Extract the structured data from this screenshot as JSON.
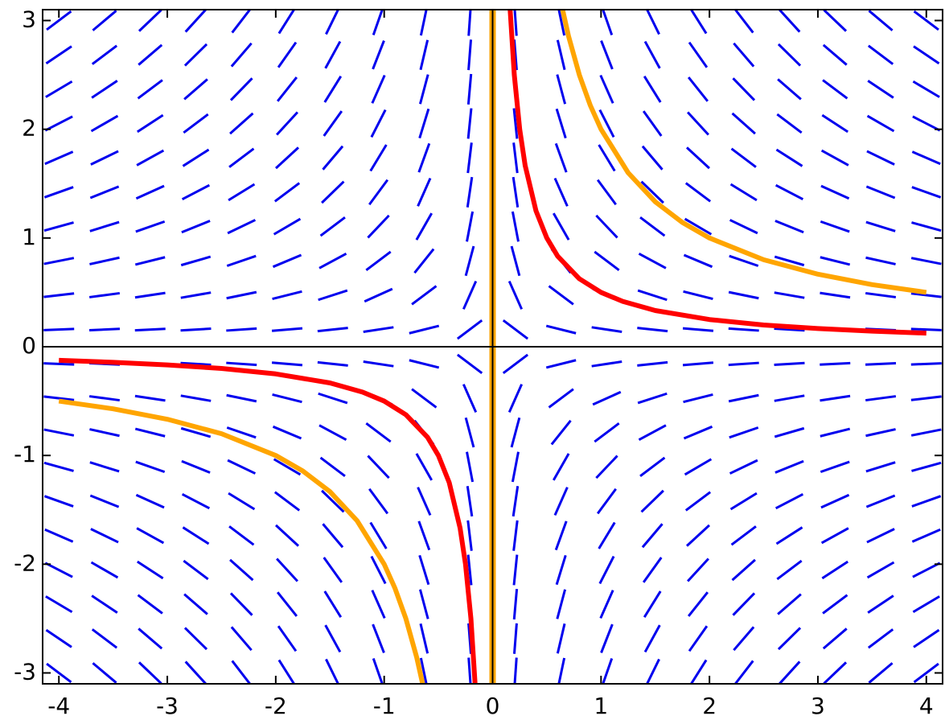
{
  "chart_data": {
    "type": "slope_field",
    "xlim": [
      -4.15,
      4.15
    ],
    "ylim": [
      -3.1,
      3.1
    ],
    "xticks": [
      -4,
      -3,
      -2,
      -1,
      0,
      1,
      2,
      3,
      4
    ],
    "yticks": [
      -3,
      -2,
      -1,
      0,
      1,
      2,
      3
    ],
    "axes_color": "#000000",
    "field": {
      "color": "#0000ee",
      "x": [
        -4,
        -3.579,
        -3.158,
        -2.737,
        -2.316,
        -1.895,
        -1.474,
        -1.053,
        -0.632,
        -0.211,
        0.211,
        0.632,
        1.053,
        1.474,
        1.895,
        2.316,
        2.737,
        3.158,
        3.579,
        4
      ],
      "y": [
        -3,
        -2.684,
        -2.368,
        -2.053,
        -1.737,
        -1.421,
        -1.105,
        -0.789,
        -0.474,
        -0.158,
        0.158,
        0.474,
        0.789,
        1.105,
        1.421,
        1.737,
        2.053,
        2.368,
        2.684,
        3
      ],
      "slopes": [
        [
          -0.75,
          -0.838,
          -0.95,
          -1.096,
          -1.295,
          -1.583,
          -2.036,
          -2.85,
          -4.75,
          -14.25,
          14.25,
          4.75,
          2.85,
          2.036,
          1.583,
          1.295,
          1.096,
          0.95,
          0.838,
          0.75
        ],
        [
          -0.671,
          -0.75,
          -0.85,
          -0.981,
          -1.159,
          -1.417,
          -1.821,
          -2.55,
          -4.25,
          -12.75,
          12.75,
          4.25,
          2.55,
          1.821,
          1.417,
          1.159,
          0.981,
          0.85,
          0.75,
          0.671
        ],
        [
          -0.592,
          -0.662,
          -0.75,
          -0.865,
          -1.023,
          -1.25,
          -1.607,
          -2.25,
          -3.75,
          -11.25,
          11.25,
          3.75,
          2.25,
          1.607,
          1.25,
          1.023,
          0.865,
          0.75,
          0.662,
          0.592
        ],
        [
          -0.513,
          -0.574,
          -0.65,
          -0.75,
          -0.886,
          -1.083,
          -1.393,
          -1.95,
          -3.25,
          -9.75,
          9.75,
          3.25,
          1.95,
          1.393,
          1.083,
          0.886,
          0.75,
          0.65,
          0.574,
          0.513
        ],
        [
          -0.434,
          -0.485,
          -0.55,
          -0.635,
          -0.75,
          -0.917,
          -1.179,
          -1.65,
          -2.75,
          -8.25,
          8.25,
          2.75,
          1.65,
          1.179,
          0.917,
          0.75,
          0.635,
          0.55,
          0.485,
          0.434
        ],
        [
          -0.355,
          -0.397,
          -0.45,
          -0.519,
          -0.614,
          -0.75,
          -0.964,
          -1.35,
          -2.25,
          -6.75,
          6.75,
          2.25,
          1.35,
          0.964,
          0.75,
          0.614,
          0.519,
          0.45,
          0.397,
          0.355
        ],
        [
          -0.276,
          -0.309,
          -0.35,
          -0.404,
          -0.477,
          -0.583,
          -0.75,
          -1.05,
          -1.75,
          -5.25,
          5.25,
          1.75,
          1.05,
          0.75,
          0.583,
          0.477,
          0.404,
          0.35,
          0.309,
          0.276
        ],
        [
          -0.197,
          -0.221,
          -0.25,
          -0.288,
          -0.341,
          -0.417,
          -0.536,
          -0.75,
          -1.25,
          -3.75,
          3.75,
          1.25,
          0.75,
          0.536,
          0.417,
          0.341,
          0.288,
          0.25,
          0.221,
          0.197
        ],
        [
          -0.118,
          -0.132,
          -0.15,
          -0.173,
          -0.205,
          -0.25,
          -0.321,
          -0.45,
          -0.75,
          -2.25,
          2.25,
          0.75,
          0.45,
          0.321,
          0.25,
          0.205,
          0.173,
          0.15,
          0.132,
          0.118
        ],
        [
          -0.039,
          -0.044,
          -0.05,
          -0.058,
          -0.068,
          -0.083,
          -0.107,
          -0.15,
          -0.25,
          -0.75,
          0.75,
          0.25,
          0.15,
          0.107,
          0.083,
          0.068,
          0.058,
          0.05,
          0.044,
          0.039
        ],
        [
          0.039,
          0.044,
          0.05,
          0.058,
          0.068,
          0.083,
          0.107,
          0.15,
          0.25,
          0.75,
          -0.75,
          -0.25,
          -0.15,
          -0.107,
          -0.083,
          -0.068,
          -0.058,
          -0.05,
          -0.044,
          -0.039
        ],
        [
          0.118,
          0.132,
          0.15,
          0.173,
          0.205,
          0.25,
          0.321,
          0.45,
          0.75,
          2.25,
          -2.25,
          -0.75,
          -0.45,
          -0.321,
          -0.25,
          -0.205,
          -0.173,
          -0.15,
          -0.132,
          -0.118
        ],
        [
          0.197,
          0.221,
          0.25,
          0.288,
          0.341,
          0.417,
          0.536,
          0.75,
          1.25,
          3.75,
          -3.75,
          -1.25,
          -0.75,
          -0.536,
          -0.417,
          -0.341,
          -0.288,
          -0.25,
          -0.221,
          -0.197
        ],
        [
          0.276,
          0.309,
          0.35,
          0.404,
          0.477,
          0.583,
          0.75,
          1.05,
          1.75,
          5.25,
          -5.25,
          -1.75,
          -1.05,
          -0.75,
          -0.583,
          -0.477,
          -0.404,
          -0.35,
          -0.309,
          -0.276
        ],
        [
          0.355,
          0.397,
          0.45,
          0.519,
          0.614,
          0.75,
          0.964,
          1.35,
          2.25,
          6.75,
          -6.75,
          -2.25,
          -1.35,
          -0.964,
          -0.75,
          -0.614,
          -0.519,
          -0.45,
          -0.397,
          -0.355
        ],
        [
          0.434,
          0.485,
          0.55,
          0.635,
          0.75,
          0.917,
          1.179,
          1.65,
          2.75,
          8.25,
          -8.25,
          -2.75,
          -1.65,
          -1.179,
          -0.917,
          -0.75,
          -0.635,
          -0.55,
          -0.485,
          -0.434
        ],
        [
          0.513,
          0.574,
          0.65,
          0.75,
          0.886,
          1.083,
          1.393,
          1.95,
          3.25,
          9.75,
          -9.75,
          -3.25,
          -1.95,
          -1.393,
          -1.083,
          -0.886,
          -0.75,
          -0.65,
          -0.574,
          -0.513
        ],
        [
          0.592,
          0.662,
          0.75,
          0.865,
          1.023,
          1.25,
          1.607,
          2.25,
          3.75,
          11.25,
          -11.25,
          -3.75,
          -2.25,
          -1.607,
          -1.25,
          -1.023,
          -0.865,
          -0.75,
          -0.662,
          -0.592
        ],
        [
          0.671,
          0.75,
          0.85,
          0.981,
          1.159,
          1.417,
          1.821,
          2.55,
          4.25,
          12.75,
          -12.75,
          -4.25,
          -2.55,
          -1.821,
          -1.417,
          -1.159,
          -0.981,
          -0.85,
          -0.75,
          -0.671
        ],
        [
          0.75,
          0.838,
          0.95,
          1.096,
          1.295,
          1.583,
          2.036,
          2.85,
          4.75,
          14.25,
          -14.25,
          -4.75,
          -2.85,
          -2.036,
          -1.583,
          -1.295,
          -1.096,
          -0.95,
          -0.838,
          -0.75
        ]
      ]
    },
    "series": [
      {
        "color": "#ffa500",
        "x": [
          0,
          0
        ],
        "values": [
          -3.1,
          3.1
        ]
      },
      {
        "color": "#ffa500",
        "x": [
          -4,
          -3.5,
          -3,
          -2.5,
          -2,
          -1.75,
          -1.5,
          -1.25,
          -1,
          -0.9,
          -0.8,
          -0.7,
          -0.64,
          null,
          0.64,
          0.7,
          0.8,
          0.9,
          1,
          1.25,
          1.5,
          1.75,
          2,
          2.5,
          3,
          3.5,
          4
        ],
        "values": [
          -0.5,
          -0.571,
          -0.667,
          -0.8,
          -1,
          -1.143,
          -1.333,
          -1.6,
          -2,
          -2.222,
          -2.5,
          -2.857,
          -3.125,
          null,
          3.125,
          2.857,
          2.5,
          2.222,
          2,
          1.6,
          1.333,
          1.143,
          1,
          0.8,
          0.667,
          0.571,
          0.5
        ]
      },
      {
        "color": "#ff0000",
        "x": [
          -4,
          -3.5,
          -3,
          -2.5,
          -2,
          -1.5,
          -1.2,
          -1,
          -0.8,
          -0.6,
          -0.5,
          -0.4,
          -0.3,
          -0.25,
          -0.2,
          -0.16,
          null,
          0.16,
          0.2,
          0.25,
          0.3,
          0.4,
          0.5,
          0.6,
          0.8,
          1,
          1.2,
          1.5,
          2,
          2.5,
          3,
          3.5,
          4
        ],
        "values": [
          -0.125,
          -0.143,
          -0.167,
          -0.2,
          -0.25,
          -0.333,
          -0.417,
          -0.5,
          -0.625,
          -0.833,
          -1,
          -1.25,
          -1.667,
          -2,
          -2.5,
          -3.125,
          null,
          3.125,
          2.5,
          2,
          1.667,
          1.25,
          1,
          0.833,
          0.625,
          0.5,
          0.417,
          0.333,
          0.25,
          0.2,
          0.167,
          0.143,
          0.125
        ]
      }
    ]
  }
}
